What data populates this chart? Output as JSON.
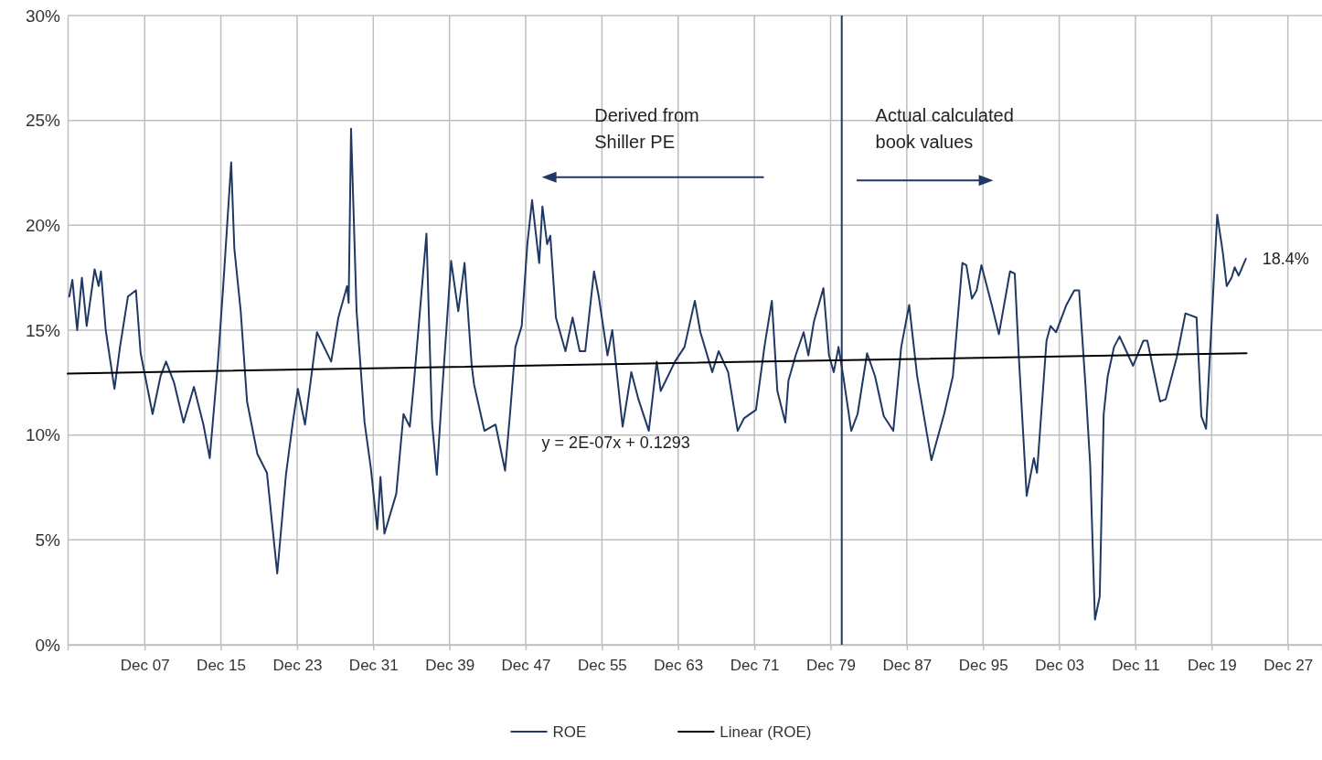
{
  "chart_data": {
    "type": "line",
    "xlim": [
      "1899-11",
      "2031-07"
    ],
    "xticks": [
      {
        "value": "1907-12",
        "label": "Dec 07"
      },
      {
        "value": "1915-12",
        "label": "Dec 15"
      },
      {
        "value": "1923-12",
        "label": "Dec 23"
      },
      {
        "value": "1931-12",
        "label": "Dec 31"
      },
      {
        "value": "1939-12",
        "label": "Dec 39"
      },
      {
        "value": "1947-12",
        "label": "Dec 47"
      },
      {
        "value": "1955-12",
        "label": "Dec 55"
      },
      {
        "value": "1963-12",
        "label": "Dec 63"
      },
      {
        "value": "1971-12",
        "label": "Dec 71"
      },
      {
        "value": "1979-12",
        "label": "Dec 79"
      },
      {
        "value": "1987-12",
        "label": "Dec 87"
      },
      {
        "value": "1995-12",
        "label": "Dec 95"
      },
      {
        "value": "2003-12",
        "label": "Dec 03"
      },
      {
        "value": "2011-12",
        "label": "Dec 11"
      },
      {
        "value": "2019-12",
        "label": "Dec 19"
      },
      {
        "value": "2027-12",
        "label": "Dec 27"
      }
    ],
    "ylim": [
      0,
      30
    ],
    "yticks": [
      {
        "value": 0,
        "label": "0%"
      },
      {
        "value": 5,
        "label": "5%"
      },
      {
        "value": 10,
        "label": "10%"
      },
      {
        "value": 15,
        "label": "15%"
      },
      {
        "value": 20,
        "label": "20%"
      },
      {
        "value": 25,
        "label": "25%"
      },
      {
        "value": 30,
        "label": "30%"
      }
    ],
    "grid": true,
    "legend": "bottom",
    "marker": "none",
    "line_style": "solid",
    "series": [
      {
        "name": "ROE",
        "color": "#203864",
        "x": [
          "1900-01",
          "1900-05",
          "1900-11",
          "1901-05",
          "1901-11",
          "1902-09",
          "1903-02",
          "1903-05",
          "1903-11",
          "1904-10",
          "1905-05",
          "1906-03",
          "1907-01",
          "1907-07",
          "1908-10",
          "1909-08",
          "1910-03",
          "1911-01",
          "1912-01",
          "1913-02",
          "1914-02",
          "1914-10",
          "1915-08",
          "1916-03",
          "1917-01",
          "1917-05",
          "1918-01",
          "1918-09",
          "1919-10",
          "1920-10",
          "1921-11",
          "1922-10",
          "1923-07",
          "1924-01",
          "1924-10",
          "1925-07",
          "1926-01",
          "1927-07",
          "1928-04",
          "1929-03",
          "1929-05",
          "1929-08",
          "1930-03",
          "1931-01",
          "1931-09",
          "1932-05",
          "1932-09",
          "1933-02",
          "1934-05",
          "1935-02",
          "1935-10",
          "1936-03",
          "1937-07",
          "1938-02",
          "1938-08",
          "1939-03",
          "1940-02",
          "1940-11",
          "1941-07",
          "1942-04",
          "1942-07",
          "1943-08",
          "1944-10",
          "1945-10",
          "1946-04",
          "1946-11",
          "1947-07",
          "1948-02",
          "1948-08",
          "1949-05",
          "1949-09",
          "1950-03",
          "1950-07",
          "1951-02",
          "1952-02",
          "1952-11",
          "1953-08",
          "1954-03",
          "1955-02",
          "1955-08",
          "1956-07",
          "1957-01",
          "1958-02",
          "1959-01",
          "1959-10",
          "1960-11",
          "1961-09",
          "1962-02",
          "1963-08",
          "1964-08",
          "1965-09",
          "1966-04",
          "1967-07",
          "1968-03",
          "1969-03",
          "1970-03",
          "1970-11",
          "1972-02",
          "1973-01",
          "1973-10",
          "1974-05",
          "1975-03",
          "1975-07",
          "1976-04",
          "1977-02",
          "1977-08",
          "1978-03",
          "1979-03",
          "1979-10",
          "1980-04",
          "1980-10",
          "1981-04",
          "1982-02",
          "1982-10",
          "1983-10",
          "1984-08",
          "1985-07",
          "1986-07",
          "1987-05",
          "1988-03",
          "1989-01",
          "1990-07",
          "1991-11",
          "1992-10",
          "1993-10",
          "1994-03",
          "1994-10",
          "1995-04",
          "1995-10",
          "1996-11",
          "1997-08",
          "1998-10",
          "1999-04",
          "1999-09",
          "2000-07",
          "2001-04",
          "2001-08",
          "2002-08",
          "2003-01",
          "2003-08",
          "2004-09",
          "2005-07",
          "2006-01",
          "2006-09",
          "2007-03",
          "2007-09",
          "2008-03",
          "2008-08",
          "2009-01",
          "2009-09",
          "2010-04",
          "2011-09",
          "2012-10",
          "2013-03",
          "2014-07",
          "2015-02",
          "2016-04",
          "2017-03",
          "2018-05",
          "2018-11",
          "2019-05",
          "2020-07",
          "2021-02",
          "2021-07",
          "2022-01",
          "2022-05",
          "2022-10",
          "2023-07"
        ],
        "values": [
          16.6,
          17.4,
          15.0,
          17.5,
          15.2,
          17.9,
          17.1,
          17.8,
          15.0,
          12.2,
          14.2,
          16.6,
          16.9,
          13.9,
          11.0,
          12.8,
          13.5,
          12.5,
          10.6,
          12.3,
          10.5,
          8.9,
          13.3,
          17.1,
          23.0,
          18.9,
          15.9,
          11.6,
          9.1,
          8.2,
          3.4,
          8.1,
          10.7,
          12.2,
          10.5,
          13.1,
          14.9,
          13.5,
          15.6,
          17.1,
          16.3,
          24.6,
          15.9,
          10.6,
          8.4,
          5.5,
          8.0,
          5.3,
          7.2,
          11.0,
          10.4,
          12.4,
          19.6,
          10.6,
          8.1,
          12.2,
          18.3,
          15.9,
          18.2,
          13.3,
          12.4,
          10.2,
          10.5,
          8.3,
          10.9,
          14.2,
          15.2,
          19.1,
          21.2,
          18.2,
          20.9,
          19.1,
          19.5,
          15.6,
          14.0,
          15.6,
          14.0,
          14.0,
          17.8,
          16.6,
          13.8,
          15.0,
          10.4,
          13.0,
          11.7,
          10.2,
          13.5,
          12.1,
          13.5,
          14.2,
          16.4,
          14.9,
          13.0,
          14.0,
          13.0,
          10.2,
          10.8,
          11.2,
          14.3,
          16.4,
          12.1,
          10.6,
          12.6,
          13.8,
          14.9,
          13.8,
          15.4,
          17.0,
          13.8,
          13.0,
          14.2,
          12.8,
          10.2,
          11.0,
          13.9,
          12.8,
          10.9,
          10.2,
          14.2,
          16.2,
          12.8,
          8.8,
          11.0,
          12.8,
          18.2,
          18.1,
          16.5,
          16.9,
          18.1,
          16.2,
          14.8,
          17.8,
          17.7,
          13.8,
          7.1,
          8.9,
          8.2,
          14.5,
          15.2,
          14.9,
          16.2,
          16.9,
          16.9,
          12.4,
          8.6,
          1.2,
          2.3,
          11.0,
          12.8,
          14.2,
          14.7,
          13.3,
          14.5,
          14.5,
          11.6,
          11.7,
          13.7,
          15.8,
          15.6,
          10.9,
          10.3,
          20.5,
          18.7,
          17.1,
          17.5,
          18.0,
          17.6,
          18.4
        ]
      },
      {
        "name": "Linear (ROE)",
        "color": "#000000",
        "x": [
          "1899-11",
          "2023-08"
        ],
        "values": [
          12.93,
          13.9
        ]
      }
    ],
    "ref_lines": [
      {
        "axis": "x",
        "value": "1981-02",
        "color": "#203864",
        "line_style": "solid"
      }
    ],
    "annotations": [
      "Derived from\nShiller PE",
      "Actual calculated\nbook values",
      "y = 2E-07x + 0.1293",
      {
        "text": "18.4%",
        "x": "2023-07",
        "y": 18.4
      }
    ]
  }
}
